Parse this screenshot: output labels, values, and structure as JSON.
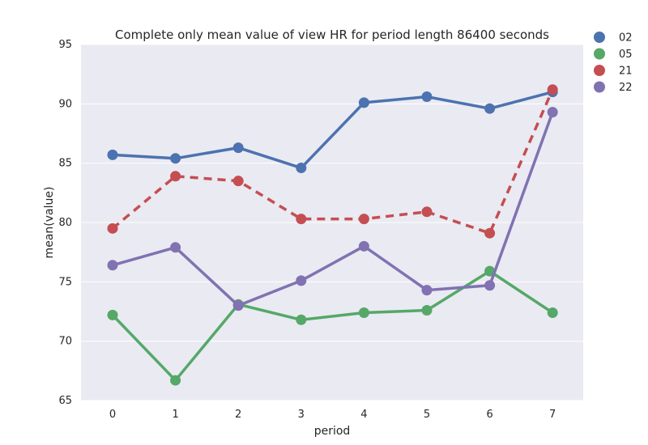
{
  "chart_data": {
    "type": "line",
    "title": "Complete only mean value of view HR for period length 86400 seconds",
    "xlabel": "period",
    "ylabel": "mean(value)",
    "categories": [
      "0",
      "1",
      "2",
      "3",
      "4",
      "5",
      "6",
      "7"
    ],
    "ylim": [
      65,
      95
    ],
    "yticks": [
      65,
      70,
      75,
      80,
      85,
      90,
      95
    ],
    "grid": true,
    "legend_position": "outside-top-right",
    "series": [
      {
        "name": "02",
        "color": "#4c72b0",
        "dashed": false,
        "values": [
          85.7,
          85.4,
          86.3,
          84.6,
          90.1,
          90.6,
          89.6,
          91.0
        ]
      },
      {
        "name": "05",
        "color": "#55a868",
        "dashed": false,
        "values": [
          72.2,
          66.7,
          73.1,
          71.8,
          72.4,
          72.6,
          75.9,
          72.4
        ]
      },
      {
        "name": "21",
        "color": "#c44e52",
        "dashed": true,
        "values": [
          79.5,
          83.9,
          83.5,
          80.3,
          80.3,
          80.9,
          79.1,
          91.2
        ]
      },
      {
        "name": "22",
        "color": "#8172b2",
        "dashed": false,
        "values": [
          76.4,
          77.9,
          73.0,
          75.1,
          78.0,
          74.3,
          74.7,
          89.3
        ]
      }
    ]
  }
}
